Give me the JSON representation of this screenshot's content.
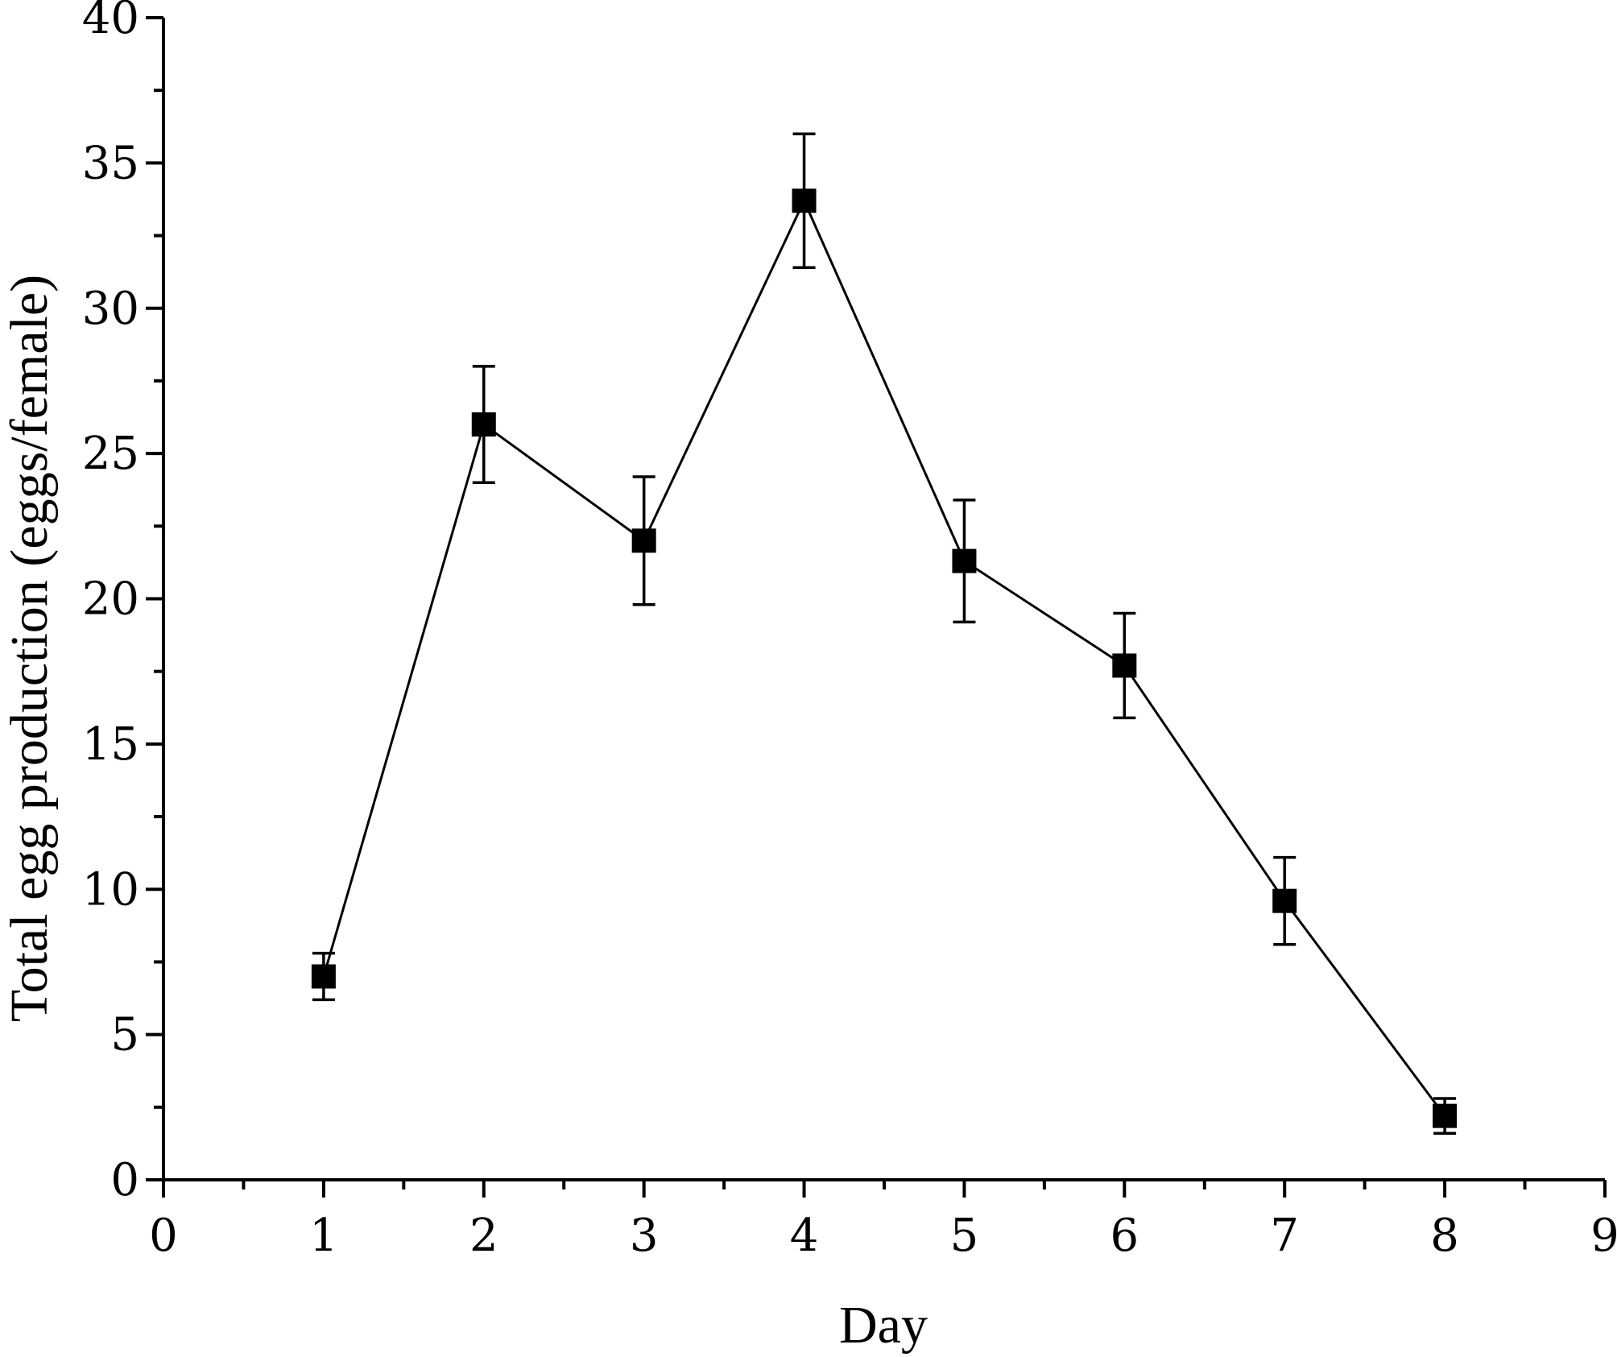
{
  "chart_data": {
    "type": "line",
    "title": "",
    "xlabel": "Day",
    "ylabel": "Total egg production (eggs/female)",
    "xlim": [
      0,
      9
    ],
    "ylim": [
      0,
      40
    ],
    "x_ticks": [
      0,
      1,
      2,
      3,
      4,
      5,
      6,
      7,
      8,
      9
    ],
    "y_ticks": [
      0,
      5,
      10,
      15,
      20,
      25,
      30,
      35,
      40
    ],
    "x_minor_step": 0.5,
    "y_minor_step": 2.5,
    "grid": false,
    "legend": "none",
    "marker": "square",
    "color": "#000000",
    "series": [
      {
        "x": [
          1,
          2,
          3,
          4,
          5,
          6,
          7,
          8
        ],
        "y": [
          7.0,
          26.0,
          22.0,
          33.7,
          21.3,
          17.7,
          9.6,
          2.2
        ],
        "error": [
          0.8,
          2.0,
          2.2,
          2.3,
          2.1,
          1.8,
          1.5,
          0.6
        ]
      }
    ]
  }
}
